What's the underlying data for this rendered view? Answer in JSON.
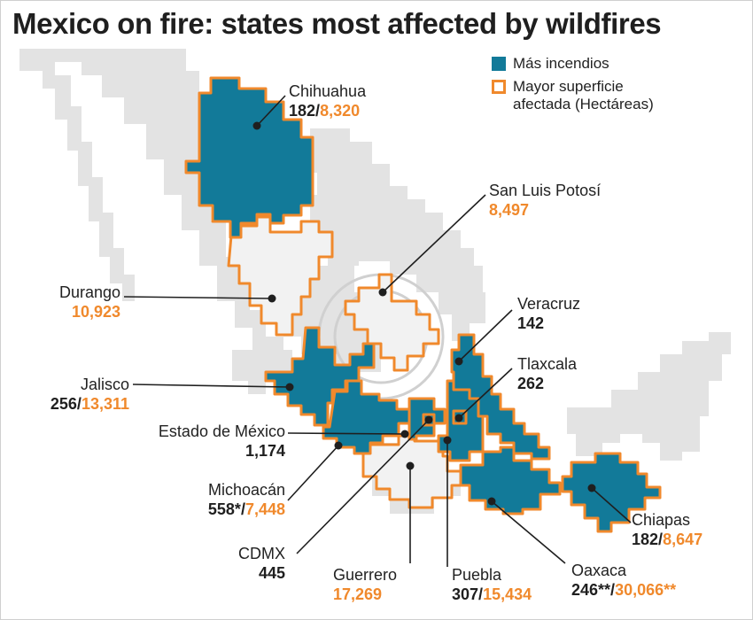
{
  "title": "Mexico on fire: states most affected by wildfires",
  "legend": {
    "most_fires": "Más incendios",
    "largest_area_line1": "Mayor superficie",
    "largest_area_line2": "afectada (Hectáreas)",
    "fill_color": "#127a99",
    "outline_color": "#f0892c"
  },
  "states": {
    "chihuahua": {
      "name": "Chihuahua",
      "fires": "182",
      "sep": "/",
      "area": "8,320"
    },
    "slp": {
      "name": "San Luis Potosí",
      "area": "8,497"
    },
    "durango": {
      "name": "Durango",
      "area": "10,923"
    },
    "veracruz": {
      "name": "Veracruz",
      "fires": "142"
    },
    "jalisco": {
      "name": "Jalisco",
      "fires": "256",
      "sep": "/",
      "area": "13,311"
    },
    "tlaxcala": {
      "name": "Tlaxcala",
      "fires": "262"
    },
    "edomex": {
      "name": "Estado de México",
      "fires": "1,174"
    },
    "michoacan": {
      "name": "Michoacán",
      "fires": "558*",
      "sep": "/",
      "area": "7,448"
    },
    "chiapas": {
      "name": "Chiapas",
      "fires": "182",
      "sep": "/",
      "area": "8,647"
    },
    "cdmx": {
      "name": "CDMX",
      "fires": "445"
    },
    "guerrero": {
      "name": "Guerrero",
      "area": "17,269"
    },
    "puebla": {
      "name": "Puebla",
      "fires": "307",
      "sep": "/",
      "area": "15,434"
    },
    "oaxaca": {
      "name": "Oaxaca",
      "fires": "246**",
      "sep": "/",
      "area": "30,066**"
    }
  }
}
